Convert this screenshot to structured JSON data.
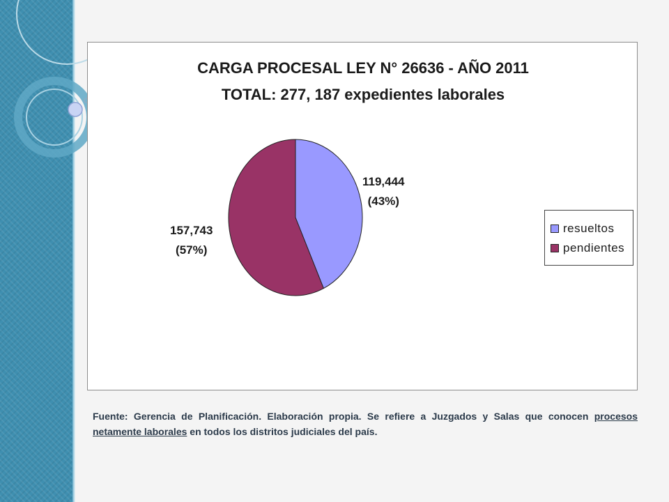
{
  "colors": {
    "resueltos": "#9999ff",
    "pendientes": "#993366",
    "band": "#3f8fb0",
    "source_text": "#2b3a4a"
  },
  "chart_data": {
    "type": "pie",
    "title": "CARGA PROCESAL LEY N° 26636 - AÑO 2011",
    "subtitle": "TOTAL: 277, 187 expedientes laborales",
    "slices": [
      {
        "name": "resueltos",
        "value": 119444,
        "value_label": "119,444",
        "percent_label": "(43%)",
        "color": "#9999ff"
      },
      {
        "name": "pendientes",
        "value": 157743,
        "value_label": "157,743",
        "percent_label": "(57%)",
        "color": "#993366"
      }
    ],
    "legend_position": "right"
  },
  "source": {
    "part1": "Fuente: Gerencia de Planificación. Elaboración propia. Se refiere a Juzgados y Salas que conocen ",
    "link": "procesos netamente laborales",
    "part2": " en todos los distritos judiciales del país."
  }
}
